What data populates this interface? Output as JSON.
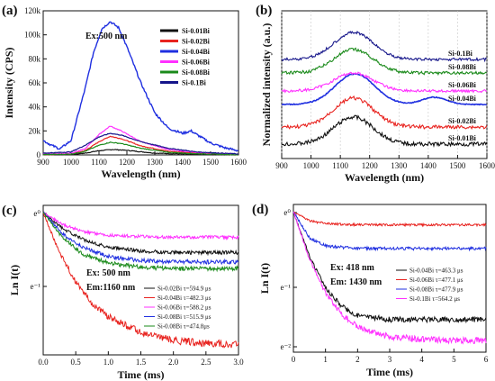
{
  "chart_data": [
    {
      "id": "a",
      "panel_label": "(a)",
      "type": "line",
      "xlabel": "Wavelength (nm)",
      "ylabel": "Intensity (CPS)",
      "xlim": [
        900,
        1600
      ],
      "ylim": [
        0,
        120000
      ],
      "xticks": [
        900,
        1000,
        1100,
        1200,
        1300,
        1400,
        1500,
        1600
      ],
      "yticks": [
        0,
        20000,
        40000,
        60000,
        80000,
        100000,
        120000
      ],
      "ytick_labels": [
        "0",
        "20k",
        "40k",
        "60k",
        "80k",
        "100k",
        "120k"
      ],
      "annotation": "Ex:500 nm",
      "legend_position": "top-right",
      "series": [
        {
          "name": "Si-0.01Bi",
          "color": "#111111",
          "points": [
            [
              900,
              200
            ],
            [
              1000,
              400
            ],
            [
              1050,
              1500
            ],
            [
              1100,
              3500
            ],
            [
              1150,
              4500
            ],
            [
              1200,
              3800
            ],
            [
              1300,
              1500
            ],
            [
              1400,
              800
            ],
            [
              1500,
              300
            ],
            [
              1600,
              100
            ]
          ]
        },
        {
          "name": "Si-0.02Bi",
          "color": "#e8231f",
          "points": [
            [
              900,
              300
            ],
            [
              1000,
              800
            ],
            [
              1050,
              3500
            ],
            [
              1100,
              11000
            ],
            [
              1140,
              15500
            ],
            [
              1180,
              13500
            ],
            [
              1250,
              7500
            ],
            [
              1350,
              3000
            ],
            [
              1450,
              1500
            ],
            [
              1600,
              300
            ]
          ]
        },
        {
          "name": "Si-0.04Bi",
          "color": "#1f2fe0",
          "points": [
            [
              900,
              12000
            ],
            [
              930,
              8000
            ],
            [
              960,
              5000
            ],
            [
              1000,
              12000
            ],
            [
              1050,
              55000
            ],
            [
              1080,
              85000
            ],
            [
              1110,
              105000
            ],
            [
              1140,
              111000
            ],
            [
              1170,
              106000
            ],
            [
              1200,
              90000
            ],
            [
              1250,
              60000
            ],
            [
              1300,
              35000
            ],
            [
              1350,
              22000
            ],
            [
              1400,
              18000
            ],
            [
              1430,
              20000
            ],
            [
              1450,
              17000
            ],
            [
              1500,
              10000
            ],
            [
              1550,
              6000
            ],
            [
              1600,
              3500
            ]
          ]
        },
        {
          "name": "Si-0.06Bi",
          "color": "#ff30ff",
          "points": [
            [
              900,
              800
            ],
            [
              1000,
              1500
            ],
            [
              1050,
              5000
            ],
            [
              1100,
              17000
            ],
            [
              1140,
              24000
            ],
            [
              1180,
              20000
            ],
            [
              1250,
              11000
            ],
            [
              1350,
              4500
            ],
            [
              1450,
              2000
            ],
            [
              1600,
              500
            ]
          ]
        },
        {
          "name": "Si-0.08Bi",
          "color": "#1a8a1a",
          "points": [
            [
              900,
              300
            ],
            [
              1000,
              700
            ],
            [
              1050,
              3000
            ],
            [
              1100,
              8000
            ],
            [
              1140,
              10500
            ],
            [
              1180,
              9500
            ],
            [
              1250,
              5500
            ],
            [
              1350,
              2200
            ],
            [
              1450,
              1000
            ],
            [
              1600,
              200
            ]
          ]
        },
        {
          "name": "Si-0.1Bi",
          "color": "#15158a",
          "points": [
            [
              900,
              1500
            ],
            [
              1000,
              2500
            ],
            [
              1050,
              8000
            ],
            [
              1100,
              15000
            ],
            [
              1140,
              18000
            ],
            [
              1180,
              16500
            ],
            [
              1250,
              11000
            ],
            [
              1350,
              5500
            ],
            [
              1450,
              2500
            ],
            [
              1600,
              800
            ]
          ]
        }
      ]
    },
    {
      "id": "b",
      "panel_label": "(b)",
      "type": "line",
      "xlabel": "Wavelength (nm)",
      "ylabel": "Normalized intensity (a.u.)",
      "xlim": [
        900,
        1600
      ],
      "xticks": [
        900,
        1000,
        1100,
        1200,
        1300,
        1400,
        1500,
        1600
      ],
      "grid": true,
      "series": [
        {
          "name": "Si-0.01Bi",
          "color": "#111111",
          "offset": 0,
          "label": "Si-0.01Bi"
        },
        {
          "name": "Si-0.02Bi",
          "color": "#e8231f",
          "offset": 1,
          "label": "Si-0.02Bi"
        },
        {
          "name": "Si-0.04Bi",
          "color": "#1f2fe0",
          "offset": 2,
          "label": "Si-0.04Bi"
        },
        {
          "name": "Si-0.06Bi",
          "color": "#ff30ff",
          "offset": 3,
          "label": "Si-0.06Bi"
        },
        {
          "name": "Si-0.08Bi",
          "color": "#1a8a1a",
          "offset": 4,
          "label": "Si-0.08Bi"
        },
        {
          "name": "Si-0.1Bi",
          "color": "#15158a",
          "offset": 5,
          "label": "Si-0.1Bi"
        }
      ]
    },
    {
      "id": "c",
      "panel_label": "(c)",
      "type": "line",
      "xlabel": "Time (ms)",
      "ylabel": "Ln I(t)",
      "xlim": [
        0,
        3.0
      ],
      "xticks": [
        0.0,
        0.5,
        1.0,
        1.5,
        2.0,
        2.5,
        3.0
      ],
      "xtick_labels": [
        "0.0",
        "0.5",
        "1.0",
        "1.5",
        "2.0",
        "2.5",
        "3.0"
      ],
      "ytick_labels": [
        "e⁰",
        "e⁻¹"
      ],
      "annotations": [
        "Ex: 500 nm",
        "Em:1160 nm"
      ],
      "series": [
        {
          "name": "Si-0.02Bi τ=594.9 μs",
          "color": "#111111",
          "decay": [
            0.0,
            0.3,
            0.6,
            1.0,
            1.5,
            2.0,
            2.5,
            3.0
          ],
          "levels": [
            0.0,
            0.12,
            0.2,
            0.26,
            0.29,
            0.3,
            0.3,
            0.3
          ]
        },
        {
          "name": "Si-0.04Bi τ=482.3 μs",
          "color": "#e8231f",
          "decay": [
            0.0,
            0.25,
            0.5,
            0.75,
            1.0,
            1.5,
            2.0,
            2.5,
            3.0
          ],
          "levels": [
            0.0,
            0.3,
            0.52,
            0.68,
            0.78,
            0.9,
            0.96,
            0.98,
            0.99
          ]
        },
        {
          "name": "Si-0.06Bi τ=588.2 μs",
          "color": "#ff30ff",
          "decay": [
            0.0,
            0.3,
            0.6,
            1.0,
            1.5,
            2.0,
            2.5,
            3.0
          ],
          "levels": [
            0.0,
            0.09,
            0.14,
            0.17,
            0.18,
            0.185,
            0.185,
            0.185
          ]
        },
        {
          "name": "Si-0.08Bi τ=515.9 μs",
          "color": "#1f2fe0",
          "decay": [
            0.0,
            0.3,
            0.6,
            1.0,
            1.5,
            2.0,
            2.5,
            3.0
          ],
          "levels": [
            0.0,
            0.16,
            0.26,
            0.33,
            0.36,
            0.37,
            0.37,
            0.37
          ]
        },
        {
          "name": "Si-0.08Bi τ=474.8μs",
          "color": "#1a8a1a",
          "decay": [
            0.0,
            0.3,
            0.6,
            1.0,
            1.5,
            2.0,
            2.5,
            3.0
          ],
          "levels": [
            0.0,
            0.19,
            0.31,
            0.38,
            0.41,
            0.42,
            0.42,
            0.42
          ]
        }
      ]
    },
    {
      "id": "d",
      "panel_label": "(d)",
      "type": "line",
      "xlabel": "Time (ms)",
      "ylabel": "Ln I(t)",
      "xlim": [
        0,
        6
      ],
      "xticks": [
        0,
        1,
        2,
        3,
        4,
        5,
        6
      ],
      "ytick_labels": [
        "e⁰",
        "e⁻¹",
        "e⁻²"
      ],
      "annotations": [
        "Ex: 418 nm",
        "Em: 1430 nm"
      ],
      "series": [
        {
          "name": "Si-0.04Bi τ=463.3 μs",
          "color": "#111111",
          "decay": [
            0.0,
            0.5,
            1.0,
            1.5,
            2.0,
            3.0,
            4.0,
            5.0,
            6.0
          ],
          "levels": [
            0.0,
            0.34,
            0.58,
            0.72,
            0.79,
            0.82,
            0.82,
            0.82,
            0.82
          ]
        },
        {
          "name": "Si-0.06Bi τ=477.1 μs",
          "color": "#e8231f",
          "decay": [
            0.0,
            0.5,
            1.0,
            2.0,
            3.0,
            4.0,
            5.0,
            6.0
          ],
          "levels": [
            0.0,
            0.07,
            0.09,
            0.1,
            0.1,
            0.1,
            0.1,
            0.1
          ]
        },
        {
          "name": "Si-0.08Bi τ=477.9 μs",
          "color": "#1f2fe0",
          "decay": [
            0.0,
            0.5,
            1.0,
            2.0,
            3.0,
            4.0,
            5.0,
            6.0
          ],
          "levels": [
            0.0,
            0.2,
            0.26,
            0.28,
            0.28,
            0.28,
            0.28,
            0.28
          ]
        },
        {
          "name": "Si-0.1Bi τ=564.2 μs",
          "color": "#ff30ff",
          "decay": [
            0.0,
            0.5,
            1.0,
            1.5,
            2.0,
            2.5,
            3.0,
            4.0,
            5.0,
            6.0
          ],
          "levels": [
            0.0,
            0.36,
            0.62,
            0.78,
            0.87,
            0.92,
            0.95,
            0.97,
            0.98,
            0.98
          ]
        }
      ]
    }
  ]
}
